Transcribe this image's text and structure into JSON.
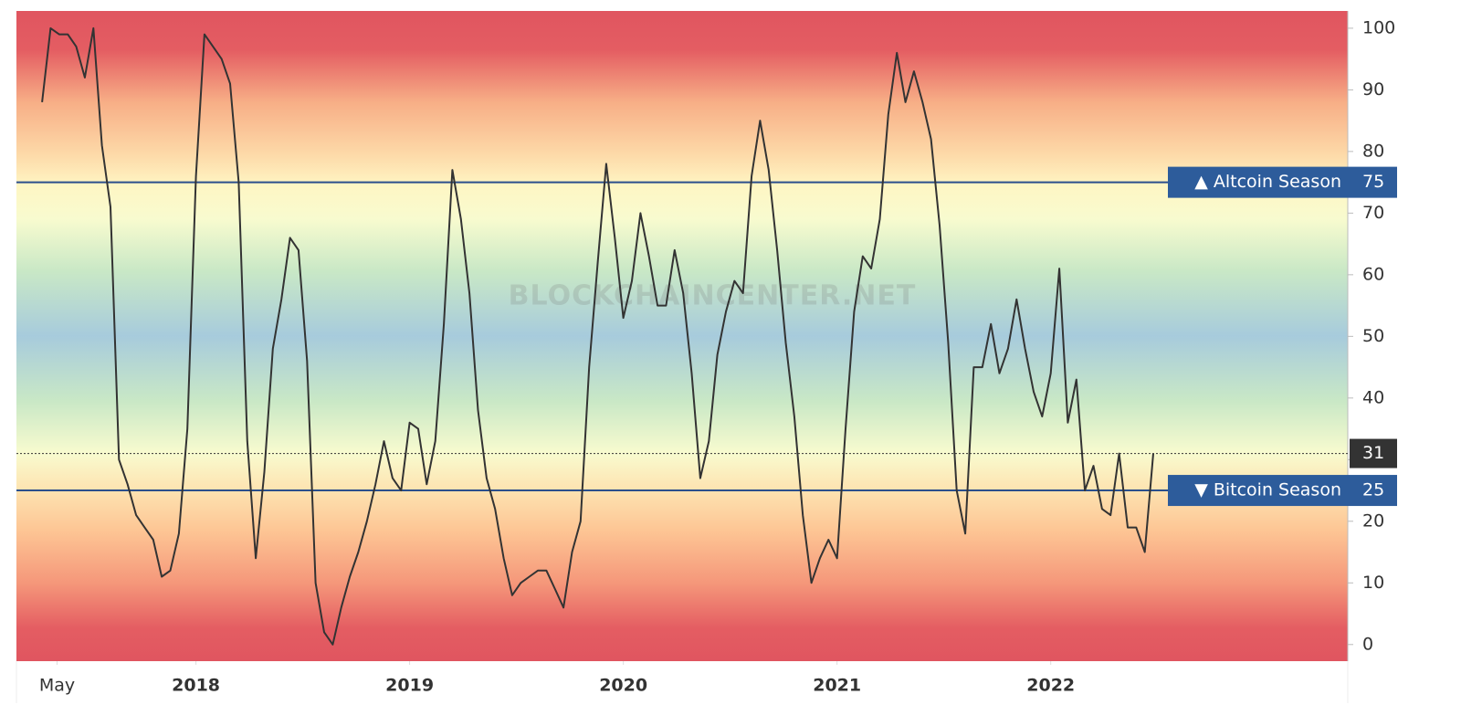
{
  "chart_data": {
    "type": "line",
    "watermark": "BLOCKCHAINCENTER.NET",
    "x": [
      2017.28,
      2017.32,
      2017.36,
      2017.4,
      2017.44,
      2017.48,
      2017.52,
      2017.56,
      2017.6,
      2017.64,
      2017.68,
      2017.72,
      2017.76,
      2017.8,
      2017.84,
      2017.88,
      2017.92,
      2017.96,
      2018,
      2018.04,
      2018.08,
      2018.12,
      2018.16,
      2018.2,
      2018.24,
      2018.28,
      2018.32,
      2018.36,
      2018.4,
      2018.44,
      2018.48,
      2018.52,
      2018.56,
      2018.6,
      2018.64,
      2018.68,
      2018.72,
      2018.76,
      2018.8,
      2018.84,
      2018.88,
      2018.92,
      2018.96,
      2019,
      2019.04,
      2019.08,
      2019.12,
      2019.16,
      2019.2,
      2019.24,
      2019.28,
      2019.32,
      2019.36,
      2019.4,
      2019.44,
      2019.48,
      2019.52,
      2019.56,
      2019.6,
      2019.64,
      2019.68,
      2019.72,
      2019.76,
      2019.8,
      2019.84,
      2019.88,
      2019.92,
      2019.96,
      2020,
      2020.04,
      2020.08,
      2020.12,
      2020.16,
      2020.2,
      2020.24,
      2020.28,
      2020.32,
      2020.36,
      2020.4,
      2020.44,
      2020.48,
      2020.52,
      2020.56,
      2020.6,
      2020.64,
      2020.68,
      2020.72,
      2020.76,
      2020.8,
      2020.84,
      2020.88,
      2020.92,
      2020.96,
      2021,
      2021.04,
      2021.08,
      2021.12,
      2021.16,
      2021.2,
      2021.24,
      2021.28,
      2021.32,
      2021.36,
      2021.4,
      2021.44,
      2021.48,
      2021.52,
      2021.56,
      2021.6,
      2021.64,
      2021.68,
      2021.72,
      2021.76,
      2021.8,
      2021.84,
      2021.88,
      2021.92,
      2021.96,
      2022,
      2022.04,
      2022.08,
      2022.12,
      2022.16,
      2022.2,
      2022.24,
      2022.28,
      2022.32,
      2022.36,
      2022.4,
      2022.44,
      2022.48
    ],
    "series": [
      {
        "color": "#333333",
        "values": [
          88,
          100,
          99,
          99,
          97,
          92,
          100,
          81,
          71,
          30,
          26,
          21,
          19,
          17,
          11,
          12,
          18,
          35,
          76,
          99,
          97,
          95,
          91,
          75,
          33,
          14,
          28,
          48,
          56,
          66,
          64,
          46,
          10,
          2,
          0,
          6,
          11,
          15,
          20,
          26,
          33,
          27,
          25,
          36,
          35,
          26,
          33,
          52,
          77,
          69,
          57,
          38,
          27,
          22,
          14,
          8,
          10,
          11,
          12,
          12,
          9,
          6,
          15,
          20,
          45,
          62,
          78,
          66,
          53,
          59,
          70,
          63,
          55,
          55,
          64,
          57,
          44,
          27,
          33,
          47,
          54,
          59,
          57,
          76,
          85,
          77,
          64,
          49,
          37,
          21,
          10,
          14,
          17,
          14,
          35,
          54,
          63,
          61,
          69,
          86,
          96,
          88,
          93,
          88,
          82,
          68,
          49,
          25,
          18,
          45,
          45,
          52,
          44,
          48,
          56,
          48,
          41,
          37,
          44,
          61,
          36,
          43,
          25,
          29,
          22,
          21,
          31,
          19,
          19,
          15,
          31
        ]
      }
    ],
    "reference_lines": [
      {
        "value": 75,
        "label": "▲ Altcoin Season"
      },
      {
        "value": 25,
        "label": "▼ Bitcoin Season"
      }
    ],
    "xlim": [
      2017.16,
      2023.39
    ],
    "xticks": [
      {
        "value": 2017.35,
        "label": "May"
      },
      2018,
      2019,
      2020,
      2021,
      2022
    ],
    "ylim": [
      -2.7,
      102.8
    ],
    "yticks": [
      0,
      10,
      20,
      30,
      40,
      50,
      60,
      70,
      80,
      90,
      100
    ]
  }
}
